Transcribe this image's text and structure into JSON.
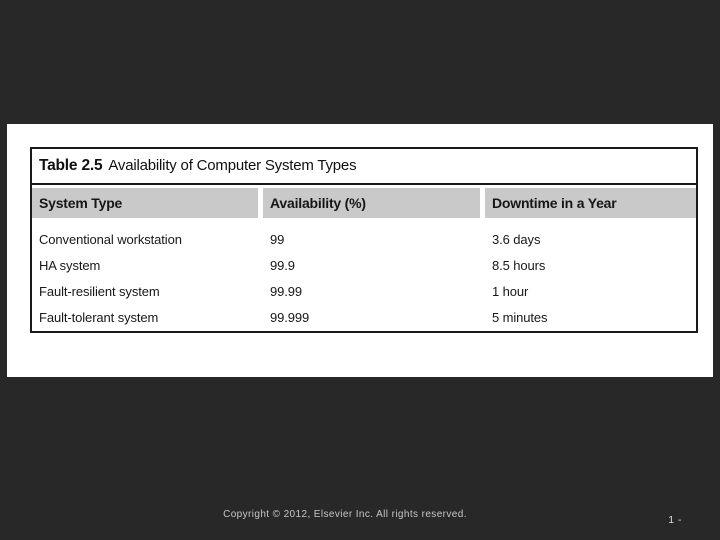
{
  "slide": {
    "table": {
      "label": "Table 2.5",
      "title": "Availability of Computer System Types",
      "columns": [
        "System Type",
        "Availability (%)",
        "Downtime in a Year"
      ],
      "rows": [
        {
          "system_type": "Conventional workstation",
          "availability": "99",
          "downtime": "3.6 days"
        },
        {
          "system_type": "HA system",
          "availability": "99.9",
          "downtime": "8.5 hours"
        },
        {
          "system_type": "Fault-resilient system",
          "availability": "99.99",
          "downtime": "1 hour"
        },
        {
          "system_type": "Fault-tolerant system",
          "availability": "99.999",
          "downtime": "5 minutes"
        }
      ]
    },
    "footer": {
      "copyright": "Copyright © 2012, Elsevier Inc. All rights reserved.",
      "page_number": "1 -"
    },
    "colors": {
      "background": "#282828",
      "panel": "#ffffff",
      "table_border": "#1a1a1a",
      "header_band": "#c9c9c9",
      "footer_text": "#c6c6c6"
    }
  },
  "chart_data": {
    "type": "table",
    "title": "Table 2.5 Availability of Computer System Types",
    "columns": [
      "System Type",
      "Availability (%)",
      "Downtime in a Year"
    ],
    "rows": [
      [
        "Conventional workstation",
        "99",
        "3.6 days"
      ],
      [
        "HA system",
        "99.9",
        "8.5 hours"
      ],
      [
        "Fault-resilient system",
        "99.99",
        "1 hour"
      ],
      [
        "Fault-tolerant system",
        "99.999",
        "5 minutes"
      ]
    ]
  }
}
